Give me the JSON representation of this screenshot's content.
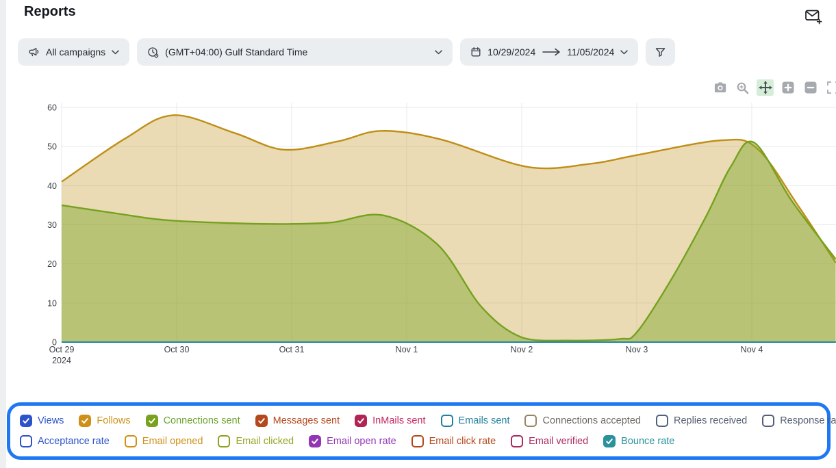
{
  "header": {
    "title": "Reports",
    "mail_icon": "envelope-plus-icon"
  },
  "filters": {
    "campaigns": {
      "label": "All campaigns",
      "icon": "megaphone-icon"
    },
    "timezone": {
      "label": "(GMT+04:00) Gulf Standard Time",
      "icon": "timezone-clock-icon"
    },
    "date_range": {
      "start": "10/29/2024",
      "end": "11/05/2024",
      "icon": "calendar-icon",
      "separator_icon": "arrow-right-icon"
    },
    "filter_button_icon": "funnel-icon"
  },
  "modebar": {
    "buttons": [
      "camera",
      "zoom",
      "pan",
      "zoom-in",
      "zoom-out",
      "autoscale"
    ],
    "active": "pan",
    "active_bg": "#d6eed8",
    "icon_color": "#a6aaaf",
    "active_icon_color": "#4a5056"
  },
  "chart_data": {
    "type": "area",
    "title": "",
    "xlabel": "",
    "ylabel": "",
    "ylim": [
      0,
      60
    ],
    "xlim_days": [
      0,
      6.73
    ],
    "grid": true,
    "grid_color": "#e8eaee",
    "tick_color": "#3c4147",
    "y_ticks": [
      0,
      10,
      20,
      30,
      40,
      50,
      60
    ],
    "x_ticks": [
      {
        "day": 0,
        "label": "Oct 29",
        "sub": "2024"
      },
      {
        "day": 1,
        "label": "Oct 30"
      },
      {
        "day": 2,
        "label": "Oct 31"
      },
      {
        "day": 3,
        "label": "Nov 1"
      },
      {
        "day": 4,
        "label": "Nov 2"
      },
      {
        "day": 5,
        "label": "Nov 3"
      },
      {
        "day": 6,
        "label": "Nov 4"
      }
    ],
    "series": [
      {
        "name": "Follows",
        "line_color": "#bf8e16",
        "fill_color": "rgba(191,142,22,0.32)",
        "width": 2.4,
        "points": [
          [
            0,
            41
          ],
          [
            0.55,
            52
          ],
          [
            0.97,
            58
          ],
          [
            1.5,
            53.5
          ],
          [
            1.93,
            49.2
          ],
          [
            2.4,
            51.3
          ],
          [
            2.78,
            54
          ],
          [
            3.3,
            51.8
          ],
          [
            4.05,
            44.8
          ],
          [
            4.6,
            45.6
          ],
          [
            5.0,
            47.8
          ],
          [
            5.74,
            51.6
          ],
          [
            6.05,
            49.4
          ],
          [
            6.4,
            35
          ],
          [
            6.73,
            20.3
          ]
        ]
      },
      {
        "name": "Connections sent",
        "line_color": "#74a21e",
        "fill_color": "rgba(116,162,30,0.42)",
        "width": 2.4,
        "points": [
          [
            0,
            35
          ],
          [
            0.5,
            32.8
          ],
          [
            0.9,
            31.2
          ],
          [
            1.5,
            30.4
          ],
          [
            1.95,
            30.2
          ],
          [
            2.35,
            30.6
          ],
          [
            2.8,
            32.4
          ],
          [
            3.27,
            24.9
          ],
          [
            3.65,
            9
          ],
          [
            4.0,
            1.2
          ],
          [
            4.4,
            0.4
          ],
          [
            4.85,
            0.8
          ],
          [
            5.0,
            2.5
          ],
          [
            5.3,
            16
          ],
          [
            5.6,
            32
          ],
          [
            5.82,
            45
          ],
          [
            6.02,
            51
          ],
          [
            6.35,
            36
          ],
          [
            6.73,
            21.2
          ]
        ]
      },
      {
        "name": "Views",
        "line_color": "#2d53cb",
        "fill_color": "none",
        "width": 2,
        "points": [
          [
            0,
            0
          ],
          [
            6.73,
            0
          ]
        ]
      },
      {
        "name": "Messages sent",
        "line_color": "#b4481c",
        "fill_color": "none",
        "width": 2,
        "points": [
          [
            0,
            0
          ],
          [
            6.73,
            0
          ]
        ]
      },
      {
        "name": "InMails sent",
        "line_color": "#b12553",
        "fill_color": "none",
        "width": 2,
        "points": [
          [
            0,
            0
          ],
          [
            6.73,
            0
          ]
        ]
      },
      {
        "name": "Email open rate",
        "line_color": "#9136b4",
        "fill_color": "none",
        "width": 2,
        "points": [
          [
            0,
            0
          ],
          [
            6.73,
            0
          ]
        ]
      },
      {
        "name": "Bounce rate",
        "line_color": "#2188a3",
        "fill_color": "none",
        "width": 2,
        "points": [
          [
            0,
            0
          ],
          [
            6.73,
            0
          ]
        ]
      }
    ]
  },
  "legend": {
    "border_color": "#1e78f2",
    "rows": [
      [
        {
          "label": "Views",
          "box_color": "#2d53cb",
          "text_color": "#2d53cb",
          "checked": true
        },
        {
          "label": "Follows",
          "box_color": "#d09018",
          "text_color": "#cf9118",
          "checked": true
        },
        {
          "label": "Connections sent",
          "box_color": "#79a21c",
          "text_color": "#6aa32c",
          "checked": true
        },
        {
          "label": "Messages sent",
          "box_color": "#b4481c",
          "text_color": "#b4481c",
          "checked": true
        },
        {
          "label": "InMails sent",
          "box_color": "#b12553",
          "text_color": "#c12960",
          "checked": true
        },
        {
          "label": "Emails sent",
          "box_color": "#22809c",
          "text_color": "#22809c",
          "checked": false
        },
        {
          "label": "Connections accepted",
          "box_color": "#9a8464",
          "text_color": "#6e6961",
          "checked": false
        },
        {
          "label": "Replies received",
          "box_color": "#53607a",
          "text_color": "#535f6f",
          "checked": false
        },
        {
          "label": "Response rate",
          "box_color": "#53607a",
          "text_color": "#535f6f",
          "checked": false
        }
      ],
      [
        {
          "label": "Acceptance rate",
          "box_color": "#2d53cb",
          "text_color": "#2d53cb",
          "checked": false
        },
        {
          "label": "Email opened",
          "box_color": "#d09018",
          "text_color": "#cf9118",
          "checked": false
        },
        {
          "label": "Email clicked",
          "box_color": "#8fa01f",
          "text_color": "#97a424",
          "checked": false
        },
        {
          "label": "Email open rate",
          "box_color": "#9136b4",
          "text_color": "#9136b4",
          "checked": true
        },
        {
          "label": "Email click rate",
          "box_color": "#b4481c",
          "text_color": "#b4481c",
          "checked": false
        },
        {
          "label": "Email verified",
          "box_color": "#ab2a62",
          "text_color": "#ab2a62",
          "checked": false
        },
        {
          "label": "Bounce rate",
          "box_color": "#2b929c",
          "text_color": "#2b929c",
          "checked": true
        }
      ]
    ]
  }
}
